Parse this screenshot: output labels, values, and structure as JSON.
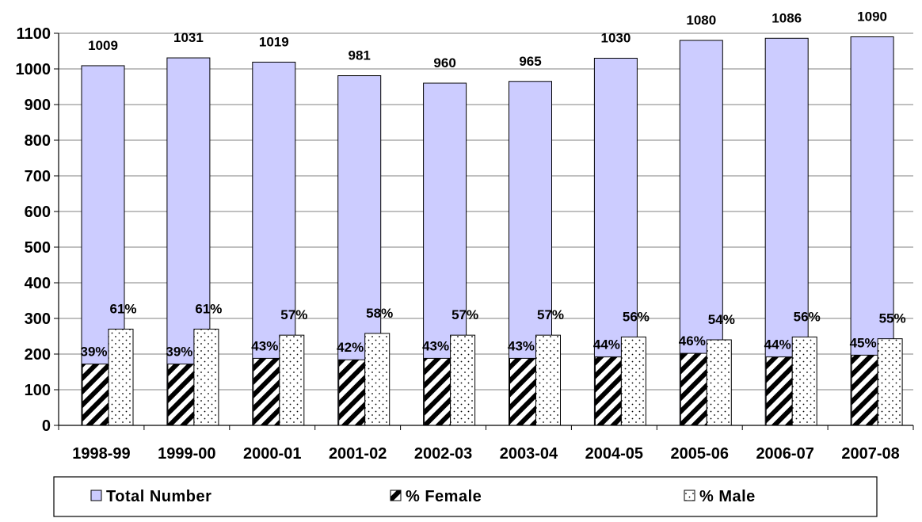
{
  "chart_data": {
    "type": "bar",
    "title": "",
    "xlabel": "",
    "ylabel": "",
    "ylim": [
      0,
      1100
    ],
    "yticks": [
      0,
      100,
      200,
      300,
      400,
      500,
      600,
      700,
      800,
      900,
      1000,
      1100
    ],
    "grid": true,
    "legend_position": "bottom",
    "categories": [
      "1998-99",
      "1999-00",
      "2000-01",
      "2001-02",
      "2002-03",
      "2003-04",
      "2004-05",
      "2005-06",
      "2006-07",
      "2007-08"
    ],
    "series": [
      {
        "name": "Total Number",
        "values": [
          1009,
          1031,
          1019,
          981,
          960,
          965,
          1030,
          1080,
          1086,
          1090
        ],
        "labels": [
          "1009",
          "1031",
          "1019",
          "981",
          "960",
          "965",
          "1030",
          "1080",
          "1086",
          "1090"
        ],
        "color": "#ccccff",
        "pattern": "solid"
      },
      {
        "name": "% Female",
        "values": [
          172,
          172,
          188,
          184,
          188,
          188,
          192,
          202,
          192,
          197
        ],
        "labels": [
          "39%",
          "39%",
          "43%",
          "42%",
          "43%",
          "43%",
          "44%",
          "46%",
          "44%",
          "45%"
        ],
        "color": "#000000",
        "pattern": "diagonal-hatch"
      },
      {
        "name": "% Male",
        "values": [
          270,
          270,
          253,
          258,
          253,
          253,
          248,
          240,
          248,
          243
        ],
        "labels": [
          "61%",
          "61%",
          "57%",
          "58%",
          "57%",
          "57%",
          "56%",
          "54%",
          "56%",
          "55%"
        ],
        "color": "#ffffff",
        "pattern": "dotted"
      }
    ]
  }
}
